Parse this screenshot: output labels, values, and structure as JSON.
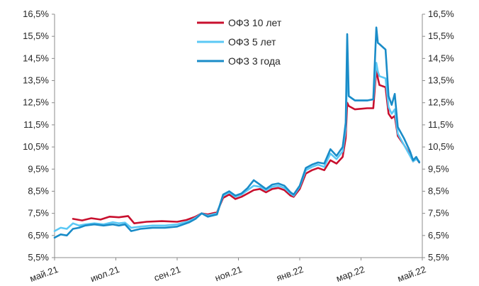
{
  "chart_data": {
    "type": "line",
    "title": "",
    "xlabel": "",
    "ylabel": "",
    "legend_position": "top-center",
    "grid": false,
    "x_unit": "month",
    "x_ticks": [
      "май.21",
      "июл.21",
      "сен.21",
      "ноя.21",
      "янв.22",
      "мар.22",
      "май.22"
    ],
    "x_tick_values": [
      0,
      2,
      4,
      6,
      8,
      10,
      12
    ],
    "ylim": [
      5.5,
      16.5
    ],
    "y_ticks": [
      "5,5%",
      "6,5%",
      "7,5%",
      "8,5%",
      "9,5%",
      "10,5%",
      "11,5%",
      "12,5%",
      "13,5%",
      "14,5%",
      "15,5%",
      "16,5%"
    ],
    "y_tick_values": [
      5.5,
      6.5,
      7.5,
      8.5,
      9.5,
      10.5,
      11.5,
      12.5,
      13.5,
      14.5,
      15.5,
      16.5
    ],
    "series": [
      {
        "name": "ОФЗ 10 лет",
        "color": "#c8102e",
        "points": [
          [
            0.6,
            7.25
          ],
          [
            0.9,
            7.18
          ],
          [
            1.2,
            7.28
          ],
          [
            1.5,
            7.22
          ],
          [
            1.8,
            7.35
          ],
          [
            2.1,
            7.32
          ],
          [
            2.4,
            7.38
          ],
          [
            2.6,
            7.05
          ],
          [
            3.0,
            7.12
          ],
          [
            3.5,
            7.15
          ],
          [
            4.0,
            7.12
          ],
          [
            4.3,
            7.2
          ],
          [
            4.6,
            7.35
          ],
          [
            4.8,
            7.5
          ],
          [
            5.0,
            7.45
          ],
          [
            5.3,
            7.55
          ],
          [
            5.5,
            8.2
          ],
          [
            5.7,
            8.35
          ],
          [
            5.9,
            8.15
          ],
          [
            6.1,
            8.25
          ],
          [
            6.3,
            8.4
          ],
          [
            6.5,
            8.55
          ],
          [
            6.7,
            8.6
          ],
          [
            6.9,
            8.45
          ],
          [
            7.1,
            8.6
          ],
          [
            7.3,
            8.65
          ],
          [
            7.5,
            8.55
          ],
          [
            7.7,
            8.3
          ],
          [
            7.8,
            8.25
          ],
          [
            8.0,
            8.6
          ],
          [
            8.2,
            9.3
          ],
          [
            8.4,
            9.45
          ],
          [
            8.6,
            9.55
          ],
          [
            8.8,
            9.45
          ],
          [
            9.0,
            9.9
          ],
          [
            9.2,
            9.75
          ],
          [
            9.4,
            10.05
          ],
          [
            9.5,
            10.9
          ],
          [
            9.55,
            12.5
          ],
          [
            9.6,
            12.35
          ],
          [
            9.8,
            12.2
          ],
          [
            10.2,
            12.25
          ],
          [
            10.4,
            12.25
          ],
          [
            10.5,
            14.0
          ],
          [
            10.55,
            13.6
          ],
          [
            10.6,
            13.3
          ],
          [
            10.8,
            13.2
          ],
          [
            10.9,
            12.0
          ],
          [
            11.0,
            11.8
          ],
          [
            11.1,
            11.9
          ],
          [
            11.2,
            11.0
          ],
          [
            11.4,
            10.6
          ],
          [
            11.6,
            10.15
          ],
          [
            11.7,
            9.85
          ],
          [
            11.8,
            10.0
          ],
          [
            11.9,
            9.8
          ]
        ]
      },
      {
        "name": "ОФЗ 5 лет",
        "color": "#5bc8f5",
        "points": [
          [
            0,
            6.7
          ],
          [
            0.2,
            6.85
          ],
          [
            0.4,
            6.8
          ],
          [
            0.6,
            7.05
          ],
          [
            0.8,
            6.95
          ],
          [
            1.0,
            7.0
          ],
          [
            1.3,
            7.05
          ],
          [
            1.6,
            7.0
          ],
          [
            1.9,
            7.1
          ],
          [
            2.1,
            7.05
          ],
          [
            2.3,
            7.08
          ],
          [
            2.5,
            6.85
          ],
          [
            2.8,
            6.9
          ],
          [
            3.2,
            6.95
          ],
          [
            3.6,
            6.95
          ],
          [
            4.0,
            7.0
          ],
          [
            4.4,
            7.15
          ],
          [
            4.6,
            7.3
          ],
          [
            4.8,
            7.5
          ],
          [
            5.0,
            7.4
          ],
          [
            5.3,
            7.5
          ],
          [
            5.5,
            8.3
          ],
          [
            5.7,
            8.45
          ],
          [
            5.9,
            8.25
          ],
          [
            6.1,
            8.35
          ],
          [
            6.3,
            8.55
          ],
          [
            6.5,
            8.75
          ],
          [
            6.7,
            8.7
          ],
          [
            6.9,
            8.55
          ],
          [
            7.1,
            8.7
          ],
          [
            7.3,
            8.75
          ],
          [
            7.5,
            8.65
          ],
          [
            7.7,
            8.4
          ],
          [
            7.8,
            8.3
          ],
          [
            8.0,
            8.7
          ],
          [
            8.2,
            9.45
          ],
          [
            8.4,
            9.6
          ],
          [
            8.6,
            9.7
          ],
          [
            8.8,
            9.6
          ],
          [
            9.0,
            10.2
          ],
          [
            9.2,
            9.95
          ],
          [
            9.4,
            10.3
          ],
          [
            9.5,
            11.3
          ],
          [
            9.55,
            14.0
          ],
          [
            9.6,
            12.8
          ],
          [
            9.8,
            12.6
          ],
          [
            10.2,
            12.6
          ],
          [
            10.4,
            12.65
          ],
          [
            10.5,
            14.3
          ],
          [
            10.55,
            13.9
          ],
          [
            10.6,
            13.7
          ],
          [
            10.8,
            13.6
          ],
          [
            10.9,
            12.3
          ],
          [
            11.0,
            12.0
          ],
          [
            11.1,
            12.2
          ],
          [
            11.2,
            11.1
          ],
          [
            11.4,
            10.6
          ],
          [
            11.6,
            10.1
          ],
          [
            11.7,
            9.85
          ],
          [
            11.8,
            9.95
          ],
          [
            11.9,
            9.85
          ]
        ]
      },
      {
        "name": "ОФЗ 3 года",
        "color": "#1a8cc8",
        "points": [
          [
            0,
            6.4
          ],
          [
            0.2,
            6.55
          ],
          [
            0.4,
            6.5
          ],
          [
            0.6,
            6.8
          ],
          [
            0.8,
            6.85
          ],
          [
            1.0,
            6.95
          ],
          [
            1.3,
            7.0
          ],
          [
            1.6,
            6.95
          ],
          [
            1.9,
            7.0
          ],
          [
            2.1,
            6.95
          ],
          [
            2.3,
            7.0
          ],
          [
            2.5,
            6.7
          ],
          [
            2.8,
            6.8
          ],
          [
            3.2,
            6.85
          ],
          [
            3.6,
            6.85
          ],
          [
            4.0,
            6.9
          ],
          [
            4.4,
            7.1
          ],
          [
            4.6,
            7.25
          ],
          [
            4.8,
            7.5
          ],
          [
            5.0,
            7.35
          ],
          [
            5.3,
            7.45
          ],
          [
            5.5,
            8.35
          ],
          [
            5.7,
            8.5
          ],
          [
            5.9,
            8.3
          ],
          [
            6.1,
            8.4
          ],
          [
            6.3,
            8.65
          ],
          [
            6.5,
            9.0
          ],
          [
            6.7,
            8.8
          ],
          [
            6.9,
            8.6
          ],
          [
            7.1,
            8.8
          ],
          [
            7.3,
            8.85
          ],
          [
            7.5,
            8.75
          ],
          [
            7.7,
            8.45
          ],
          [
            7.8,
            8.35
          ],
          [
            8.0,
            8.75
          ],
          [
            8.2,
            9.55
          ],
          [
            8.4,
            9.7
          ],
          [
            8.6,
            9.8
          ],
          [
            8.8,
            9.75
          ],
          [
            9.0,
            10.4
          ],
          [
            9.2,
            10.1
          ],
          [
            9.4,
            10.5
          ],
          [
            9.5,
            11.6
          ],
          [
            9.55,
            15.6
          ],
          [
            9.6,
            12.8
          ],
          [
            9.8,
            12.6
          ],
          [
            10.2,
            12.6
          ],
          [
            10.4,
            12.65
          ],
          [
            10.5,
            15.9
          ],
          [
            10.55,
            15.2
          ],
          [
            10.6,
            15.15
          ],
          [
            10.8,
            14.9
          ],
          [
            10.9,
            12.8
          ],
          [
            11.0,
            12.4
          ],
          [
            11.1,
            12.9
          ],
          [
            11.2,
            11.4
          ],
          [
            11.4,
            10.9
          ],
          [
            11.6,
            10.3
          ],
          [
            11.7,
            9.9
          ],
          [
            11.8,
            10.05
          ],
          [
            11.9,
            9.8
          ]
        ]
      }
    ]
  }
}
